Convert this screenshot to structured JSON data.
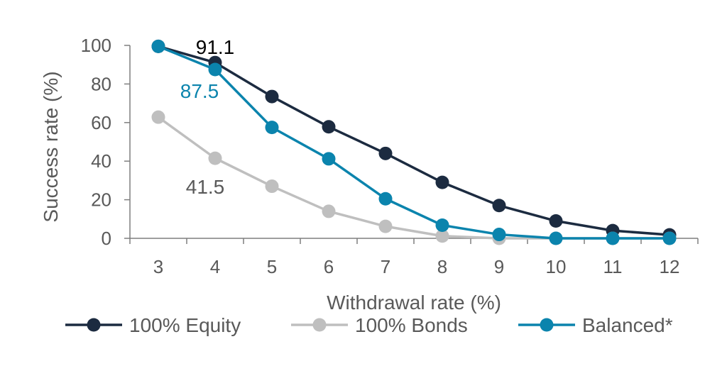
{
  "chart_data": {
    "type": "line",
    "x": [
      3,
      4,
      5,
      6,
      7,
      8,
      9,
      10,
      11,
      12
    ],
    "xlabel": "Withdrawal rate (%)",
    "ylabel": "Success rate (%)",
    "ylim": [
      0,
      100
    ],
    "yticks": [
      0,
      20,
      40,
      60,
      80,
      100
    ],
    "grid": false,
    "legend_position": "bottom",
    "series": [
      {
        "name": "100% Equity",
        "color": "#1c2b40",
        "values": [
          99.5,
          91.1,
          73.5,
          57.8,
          44.0,
          29.0,
          17.0,
          9.0,
          4.0,
          1.8
        ]
      },
      {
        "name": "100% Bonds",
        "color": "#bfbfbf",
        "values": [
          62.8,
          41.5,
          27.0,
          14.0,
          6.2,
          1.2,
          0.0,
          0.0,
          0.0,
          0.0
        ]
      },
      {
        "name": "Balanced*",
        "color": "#0b84ad",
        "values": [
          99.5,
          87.5,
          57.5,
          41.2,
          20.5,
          6.8,
          2.0,
          0.0,
          0.0,
          0.0
        ]
      }
    ],
    "annotations": [
      {
        "text": "91.1",
        "series": 0,
        "x": 4,
        "color": "#000000"
      },
      {
        "text": "87.5",
        "series": 2,
        "x": 4,
        "color": "#0b84ad"
      },
      {
        "text": "41.5",
        "series": 1,
        "x": 4,
        "color": "#595959"
      }
    ]
  }
}
